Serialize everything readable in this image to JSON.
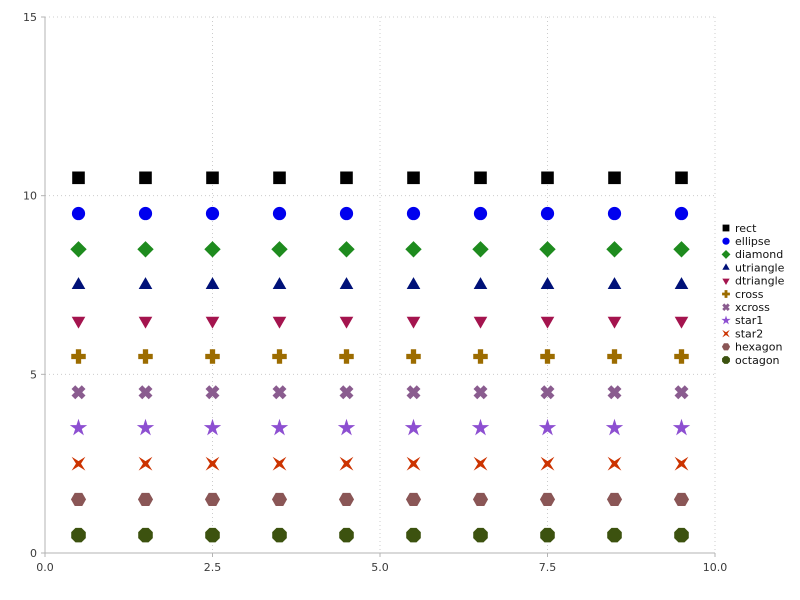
{
  "chart_data": {
    "type": "scatter",
    "title": "",
    "xlabel": "",
    "ylabel": "",
    "x": [
      0.5,
      1.5,
      2.5,
      3.5,
      4.5,
      5.5,
      6.5,
      7.5,
      8.5,
      9.5
    ],
    "series": [
      {
        "name": "rect",
        "marker": "rect",
        "color": "#000000",
        "y": 10.5
      },
      {
        "name": "ellipse",
        "marker": "ellipse",
        "color": "#0000ee",
        "y": 9.5
      },
      {
        "name": "diamond",
        "marker": "diamond",
        "color": "#1e8b1e",
        "y": 8.5
      },
      {
        "name": "utriangle",
        "marker": "utriangle",
        "color": "#001178",
        "y": 7.5
      },
      {
        "name": "dtriangle",
        "marker": "dtriangle",
        "color": "#a4144e",
        "y": 6.5
      },
      {
        "name": "cross",
        "marker": "cross",
        "color": "#9c6c00",
        "y": 5.5
      },
      {
        "name": "xcross",
        "marker": "xcross",
        "color": "#8a5c8f",
        "y": 4.5
      },
      {
        "name": "star1",
        "marker": "star1",
        "color": "#8d4fd1",
        "y": 3.5
      },
      {
        "name": "star2",
        "marker": "star2",
        "color": "#cc3300",
        "y": 2.5
      },
      {
        "name": "hexagon",
        "marker": "hexagon",
        "color": "#8a5656",
        "y": 1.5
      },
      {
        "name": "octagon",
        "marker": "octagon",
        "color": "#3c520f",
        "y": 0.5
      }
    ],
    "xlim": [
      0,
      10
    ],
    "ylim": [
      0,
      15
    ],
    "xticks": {
      "values": [
        0,
        2.5,
        5,
        7.5,
        10
      ],
      "labels": [
        "0.0",
        "2.5",
        "5.0",
        "7.5",
        "10.0"
      ]
    },
    "yticks": {
      "values": [
        0,
        5,
        10,
        15
      ],
      "labels": [
        "0",
        "5",
        "10",
        "15"
      ]
    },
    "grid": true,
    "grid_style": "dotted",
    "legend_position": "right-outside",
    "legend": [
      "rect",
      "ellipse",
      "diamond",
      "utriangle",
      "dtriangle",
      "cross",
      "xcross",
      "star1",
      "star2",
      "hexagon",
      "octagon"
    ]
  },
  "style": {
    "background": "#ffffff",
    "grid_color": "#cccccc",
    "axis_color": "#b3b3b3",
    "tick_label_color": "#3a3a3a",
    "legend_text_color": "#111111",
    "tick_font_size": 11,
    "legend_font_size": 11
  }
}
